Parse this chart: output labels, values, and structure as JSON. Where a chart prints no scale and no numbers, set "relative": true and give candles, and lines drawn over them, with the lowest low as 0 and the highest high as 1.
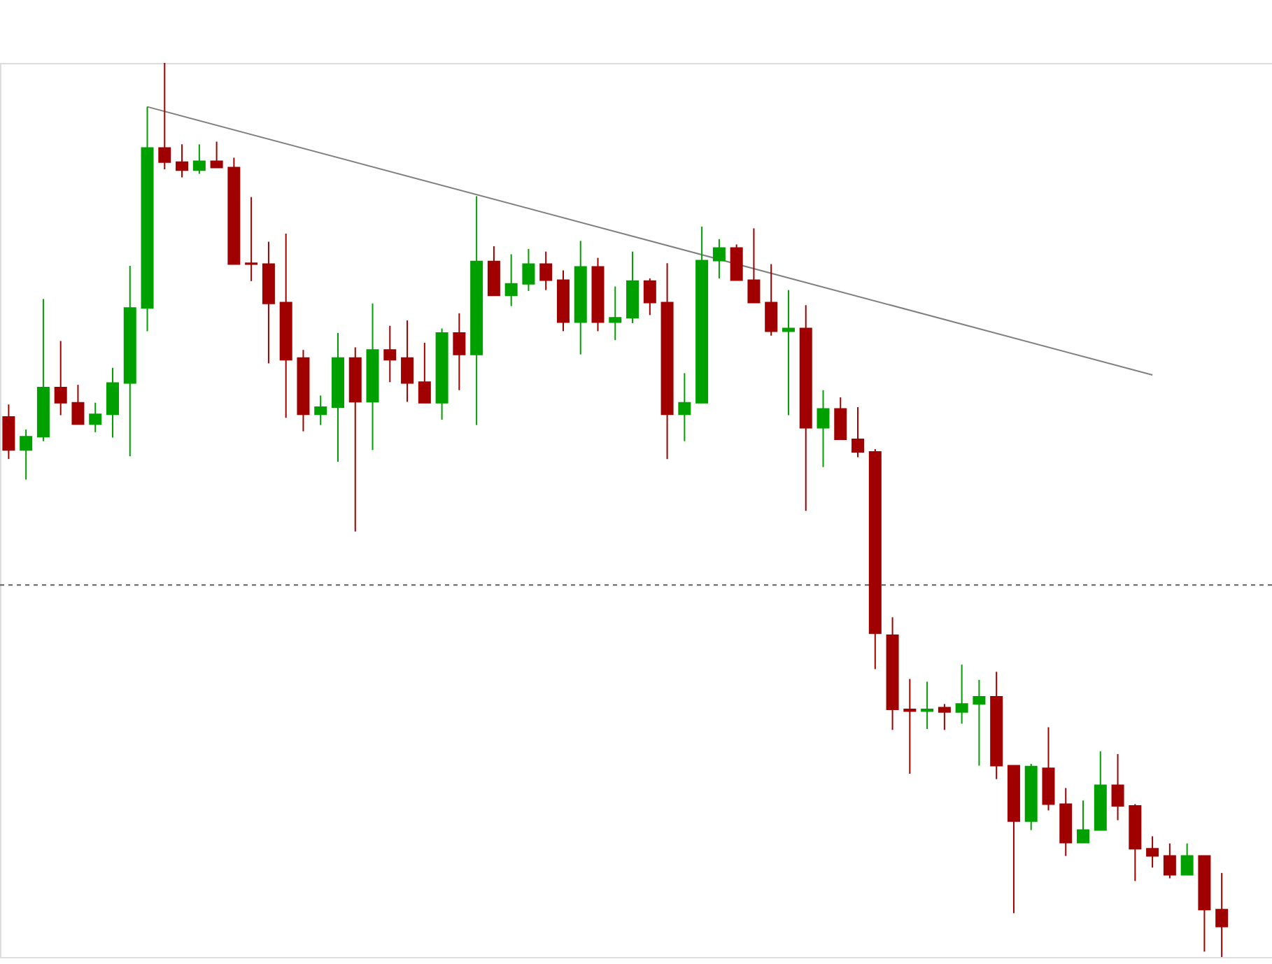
{
  "chart_data": {
    "type": "candlestick",
    "relative": true,
    "categories": [
      null,
      null,
      null,
      null,
      null,
      null,
      null,
      null,
      null,
      null,
      null,
      null,
      null,
      null,
      null,
      null,
      null,
      null,
      null,
      null,
      null,
      null,
      null,
      null,
      null,
      null,
      null,
      null,
      null,
      null,
      null,
      null,
      null,
      null,
      null,
      null,
      null,
      null,
      null,
      null,
      null,
      null,
      null,
      null,
      null,
      null,
      null,
      null,
      null,
      null,
      null,
      null,
      null,
      null,
      null,
      null,
      null,
      null,
      null,
      null,
      null,
      null,
      null,
      null,
      null,
      null,
      null,
      null,
      null,
      null,
      null
    ],
    "ohlc": [
      [
        0.604,
        0.618,
        0.557,
        0.567
      ],
      [
        0.567,
        0.59,
        0.534,
        0.582
      ],
      [
        0.582,
        0.736,
        0.577,
        0.637
      ],
      [
        0.637,
        0.689,
        0.606,
        0.62
      ],
      [
        0.62,
        0.64,
        0.596,
        0.596
      ],
      [
        0.596,
        0.62,
        0.587,
        0.607
      ],
      [
        0.607,
        0.659,
        0.581,
        0.642
      ],
      [
        0.642,
        0.773,
        0.56,
        0.726
      ],
      [
        0.726,
        0.951,
        0.7,
        0.905
      ],
      [
        0.905,
        1,
        0.881,
        0.889
      ],
      [
        0.889,
        0.909,
        0.872,
        0.88
      ],
      [
        0.88,
        0.909,
        0.876,
        0.89
      ],
      [
        0.89,
        0.912,
        0.883,
        0.883
      ],
      [
        0.883,
        0.894,
        0.775,
        0.775
      ],
      [
        0.776,
        0.85,
        0.756,
        0.775
      ],
      [
        0.775,
        0.8,
        0.664,
        0.731
      ],
      [
        0.732,
        0.809,
        0.603,
        0.668
      ],
      [
        0.67,
        0.679,
        0.588,
        0.607
      ],
      [
        0.607,
        0.628,
        0.595,
        0.615
      ],
      [
        0.615,
        0.698,
        0.554,
        0.67
      ],
      [
        0.67,
        0.682,
        0.476,
        0.621
      ],
      [
        0.621,
        0.731,
        0.567,
        0.679
      ],
      [
        0.679,
        0.706,
        0.643,
        0.668
      ],
      [
        0.67,
        0.712,
        0.621,
        0.642
      ],
      [
        0.643,
        0.687,
        0.62,
        0.62
      ],
      [
        0.62,
        0.703,
        0.601,
        0.698
      ],
      [
        0.698,
        0.72,
        0.634,
        0.674
      ],
      [
        0.674,
        0.851,
        0.595,
        0.778
      ],
      [
        0.778,
        0.795,
        0.74,
        0.74
      ],
      [
        0.74,
        0.786,
        0.728,
        0.753
      ],
      [
        0.753,
        0.792,
        0.745,
        0.775
      ],
      [
        0.775,
        0.789,
        0.746,
        0.757
      ],
      [
        0.757,
        0.768,
        0.7,
        0.71
      ],
      [
        0.71,
        0.801,
        0.674,
        0.772
      ],
      [
        0.772,
        0.782,
        0.7,
        0.71
      ],
      [
        0.71,
        0.75,
        0.69,
        0.715
      ],
      [
        0.715,
        0.789,
        0.709,
        0.756
      ],
      [
        0.756,
        0.759,
        0.718,
        0.732
      ],
      [
        0.732,
        0.776,
        0.557,
        0.607
      ],
      [
        0.607,
        0.653,
        0.577,
        0.62
      ],
      [
        0.62,
        0.817,
        0.62,
        0.779
      ],
      [
        0.779,
        0.803,
        0.759,
        0.793
      ],
      [
        0.793,
        0.797,
        0.757,
        0.757
      ],
      [
        0.757,
        0.815,
        0.732,
        0.732
      ],
      [
        0.732,
        0.775,
        0.695,
        0.7
      ],
      [
        0.7,
        0.746,
        0.606,
        0.703
      ],
      [
        0.703,
        0.729,
        0.499,
        0.592
      ],
      [
        0.592,
        0.634,
        0.548,
        0.613
      ],
      [
        0.613,
        0.626,
        0.579,
        0.579
      ],
      [
        0.579,
        0.615,
        0.559,
        0.565
      ],
      [
        0.565,
        0.568,
        0.322,
        0.362
      ],
      [
        0.36,
        0.38,
        0.254,
        0.277
      ],
      [
        0.277,
        0.311,
        0.205,
        0.275
      ],
      [
        0.275,
        0.308,
        0.255,
        0.277
      ],
      [
        0.279,
        0.283,
        0.254,
        0.274
      ],
      [
        0.274,
        0.327,
        0.261,
        0.283
      ],
      [
        0.283,
        0.31,
        0.214,
        0.291
      ],
      [
        0.291,
        0.319,
        0.199,
        0.214
      ],
      [
        0.214,
        0.214,
        0.049,
        0.152
      ],
      [
        0.152,
        0.216,
        0.142,
        0.213
      ],
      [
        0.211,
        0.257,
        0.164,
        0.171
      ],
      [
        0.171,
        0.189,
        0.113,
        0.128
      ],
      [
        0.128,
        0.175,
        0.128,
        0.142
      ],
      [
        0.142,
        0.23,
        0.142,
        0.192
      ],
      [
        0.192,
        0.227,
        0.153,
        0.169
      ],
      [
        0.169,
        0.171,
        0.085,
        0.121
      ],
      [
        0.121,
        0.135,
        0.1,
        0.113
      ],
      [
        0.113,
        0.127,
        0.088,
        0.092
      ],
      [
        0.092,
        0.127,
        0.092,
        0.113
      ],
      [
        0.113,
        0.113,
        0.006,
        0.053
      ],
      [
        0.053,
        0.094,
        0,
        0.034
      ]
    ],
    "colors": [
      "#a00000",
      "#00a000",
      "#00a000",
      "#a00000",
      "#a00000",
      "#00a000",
      "#00a000",
      "#00a000",
      "#00a000",
      "#a00000",
      "#a00000",
      "#00a000",
      "#a00000",
      "#a00000",
      "#a00000",
      "#a00000",
      "#a00000",
      "#a00000",
      "#00a000",
      "#00a000",
      "#a00000",
      "#00a000",
      "#a00000",
      "#a00000",
      "#a00000",
      "#00a000",
      "#a00000",
      "#00a000",
      "#a00000",
      "#00a000",
      "#00a000",
      "#a00000",
      "#a00000",
      "#00a000",
      "#a00000",
      "#00a000",
      "#00a000",
      "#a00000",
      "#a00000",
      "#00a000",
      "#00a000",
      "#00a000",
      "#a00000",
      "#a00000",
      "#a00000",
      "#00a000",
      "#a00000",
      "#00a000",
      "#a00000",
      "#a00000",
      "#a00000",
      "#a00000",
      "#a00000",
      "#00a000",
      "#a00000",
      "#00a000",
      "#00a000",
      "#a00000",
      "#a00000",
      "#00a000",
      "#a00000",
      "#a00000",
      "#00a000",
      "#00a000",
      "#a00000",
      "#a00000",
      "#a00000",
      "#a00000",
      "#00a000",
      "#a00000",
      "#a00000"
    ],
    "series": [
      {
        "type": "line",
        "values": [
          null,
          null,
          null,
          null,
          null,
          null,
          null,
          null,
          0.951,
          null,
          null,
          null,
          null,
          null,
          null,
          null,
          null,
          null,
          null,
          null,
          null,
          null,
          null,
          null,
          null,
          null,
          null,
          null,
          null,
          null,
          null,
          null,
          null,
          null,
          null,
          null,
          null,
          null,
          null,
          null,
          null,
          null,
          null,
          null,
          null,
          null,
          null,
          null,
          null,
          null,
          null,
          null,
          null,
          null,
          null,
          null,
          null,
          null,
          null,
          null,
          null,
          null,
          null,
          null,
          null,
          null,
          0.651,
          null,
          null,
          null,
          null
        ],
        "color": "#808080"
      }
    ],
    "ref_lines": [
      {
        "axis": "y",
        "value": 0.416,
        "color": "#606060",
        "line_style": "dashed"
      }
    ]
  }
}
